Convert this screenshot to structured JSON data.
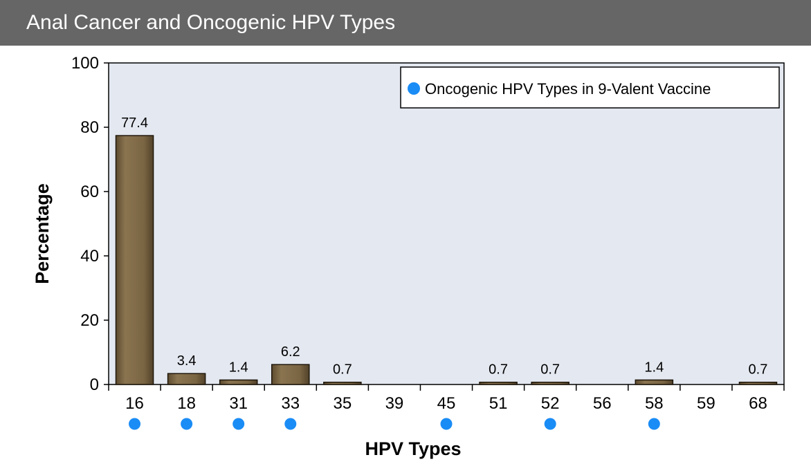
{
  "header": {
    "title": "Anal Cancer and Oncogenic HPV Types"
  },
  "colors": {
    "bar": "#7a6543",
    "plot_bg": "#e4e8f0",
    "marker": "#1a8cf5",
    "title_bar": "#666666"
  },
  "chart_data": {
    "type": "bar",
    "categories": [
      "16",
      "18",
      "31",
      "33",
      "35",
      "39",
      "45",
      "51",
      "52",
      "56",
      "58",
      "59",
      "68"
    ],
    "values": [
      77.4,
      3.4,
      1.4,
      6.2,
      0.7,
      0,
      0,
      0.7,
      0.7,
      0,
      1.4,
      0,
      0.7
    ],
    "data_labels": [
      "77.4",
      "3.4",
      "1.4",
      "6.2",
      "0.7",
      "",
      "",
      "0.7",
      "0.7",
      "",
      "1.4",
      "",
      "0.7"
    ],
    "vaccine_types": [
      "16",
      "18",
      "31",
      "33",
      "45",
      "52",
      "58"
    ],
    "xlabel": "HPV Types",
    "ylabel": "Percentage",
    "ylim": [
      0,
      100
    ],
    "yticks": [
      "0",
      "20",
      "40",
      "60",
      "80",
      "100"
    ],
    "legend": {
      "label": "Oncogenic HPV Types in 9-Valent Vaccine",
      "position": "top-right"
    },
    "grid": false
  }
}
